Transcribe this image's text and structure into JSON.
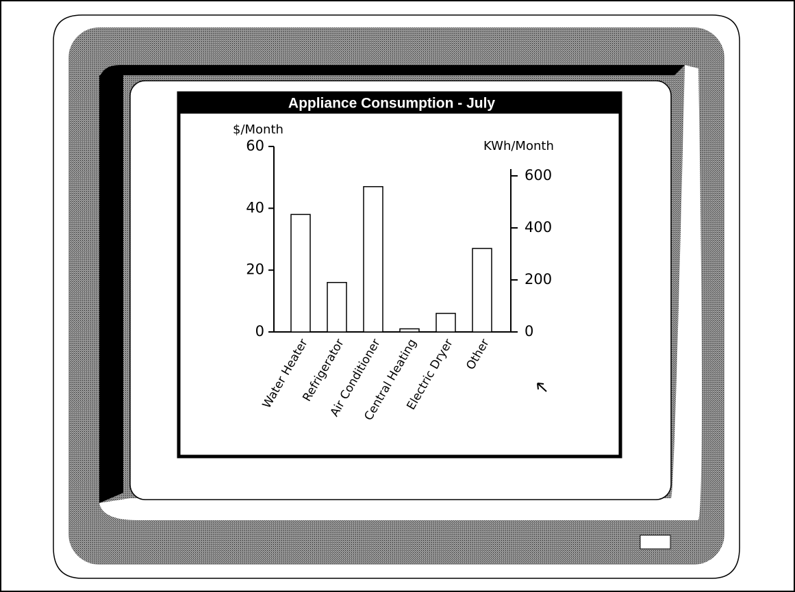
{
  "chart_data": {
    "type": "bar",
    "title": "Appliance Consumption - July",
    "y_label": "$/Month",
    "y2_label": "KWh/Month",
    "categories": [
      "Water Heater",
      "Refrigerator",
      "Air Conditioner",
      "Central Heating",
      "Electric Dryer",
      "Other"
    ],
    "values": [
      38,
      16,
      47,
      1,
      6,
      27
    ],
    "color": "#ffffff",
    "ylim": [
      0,
      60
    ],
    "yticks": [
      0,
      20,
      40,
      60
    ],
    "y2lim": [
      0,
      713
    ],
    "y2ticks": [
      0,
      200,
      400,
      600
    ]
  }
}
